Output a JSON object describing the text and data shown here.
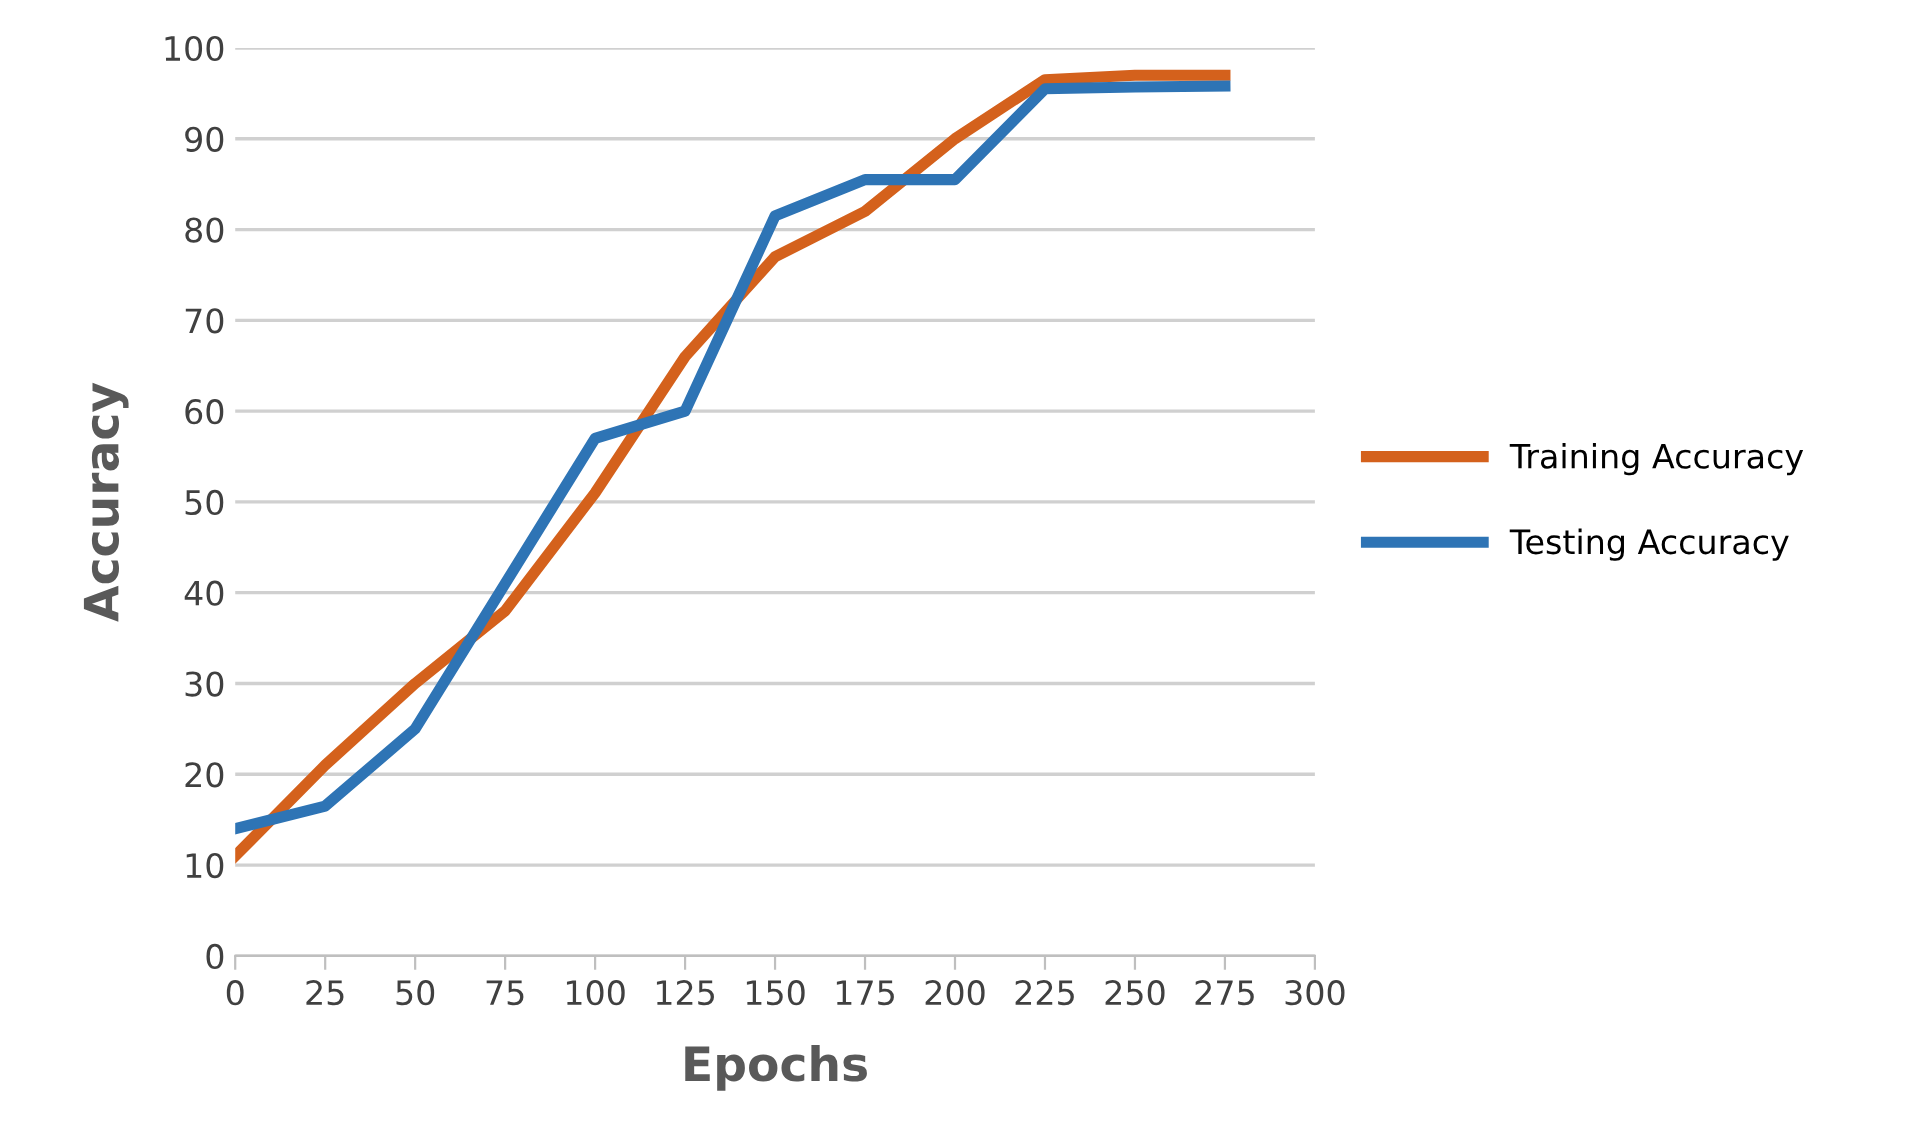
{
  "chart_data": {
    "type": "line",
    "xlabel": "Epochs",
    "ylabel": "Accuracy",
    "x": [
      0,
      25,
      50,
      75,
      100,
      125,
      150,
      175,
      200,
      225,
      250,
      275
    ],
    "series": [
      {
        "name": "Training Accuracy",
        "color": "#d4611c",
        "values": [
          11,
          21,
          30,
          38,
          51,
          66,
          77,
          82,
          90,
          96.5,
          97,
          97
        ]
      },
      {
        "name": "Testing Accuracy",
        "color": "#2e74b5",
        "values": [
          14,
          16.5,
          25,
          41,
          57,
          60,
          81.5,
          85.5,
          85.5,
          95.5,
          95.7,
          95.8
        ]
      }
    ],
    "xlim": [
      0,
      300
    ],
    "xticks": [
      0,
      25,
      50,
      75,
      100,
      125,
      150,
      175,
      200,
      225,
      250,
      275,
      300
    ],
    "ylim": [
      0,
      100
    ],
    "yticks": [
      0,
      10,
      20,
      30,
      40,
      50,
      60,
      70,
      80,
      90,
      100
    ],
    "grid": "y",
    "legend": "right",
    "marker": "none",
    "line_style": "solid"
  }
}
